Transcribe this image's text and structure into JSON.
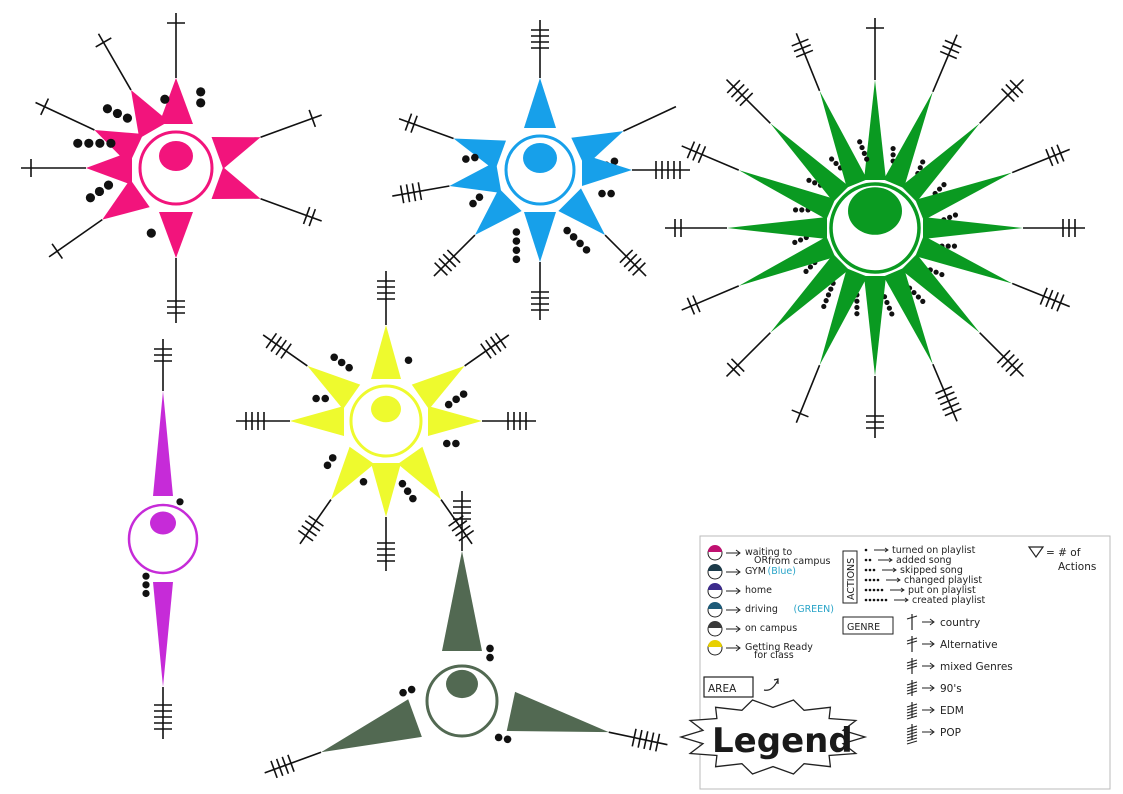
{
  "glyphs": [
    {
      "id": "pink",
      "color": "#f2147c",
      "location": "waiting to OR from campus",
      "spikes": 8,
      "genre_marks": [
        1,
        1,
        1,
        1,
        2,
        1,
        3,
        1
      ],
      "action_dots": [
        2,
        3,
        0,
        4,
        0,
        3,
        1,
        1
      ]
    },
    {
      "id": "blue",
      "color": "#17a0ea",
      "location": "gym",
      "spikes": 8,
      "genre_marks": [
        4,
        0,
        2,
        4,
        5,
        4,
        4,
        4
      ],
      "action_dots": [
        0,
        2,
        0,
        2,
        2,
        2,
        4,
        4
      ]
    },
    {
      "id": "green",
      "color": "#0a9a21",
      "location": "driving",
      "spikes": 16,
      "genre_marks": [
        1,
        3,
        3,
        3,
        3,
        4,
        4,
        5,
        3,
        1,
        2,
        2,
        2,
        3,
        4,
        3
      ],
      "action_dots": [
        3,
        3,
        3,
        3,
        3,
        3,
        4,
        4,
        4,
        5,
        3,
        3,
        3,
        3,
        3,
        4
      ]
    },
    {
      "id": "purple",
      "color": "#c62bd8",
      "location": "home",
      "spikes": 2,
      "genre_marks": [
        3,
        5
      ],
      "action_dots": [
        1,
        3
      ]
    },
    {
      "id": "yellow",
      "color": "#eefa2e",
      "location": "getting ready for class",
      "spikes": 8,
      "genre_marks": [
        4,
        4,
        4,
        4,
        4,
        4,
        4,
        4
      ],
      "action_dots": [
        1,
        3,
        2,
        3,
        2,
        3,
        2,
        1
      ]
    },
    {
      "id": "darkgreen",
      "color": "#526952",
      "location": "on campus",
      "spikes": 3,
      "genre_marks": [
        4,
        5,
        4
      ],
      "action_dots": [
        2,
        2,
        2
      ]
    }
  ],
  "legend": {
    "title": "Legend",
    "locations": [
      {
        "color": "#c01070",
        "label": "waiting to",
        "label2": "OR",
        "label3": "from campus"
      },
      {
        "color": "#1c3b4a",
        "label": "GYM",
        "note": "(Blue)"
      },
      {
        "color": "#3c2b8c",
        "label": "home"
      },
      {
        "color": "#1c5a78",
        "label": "driving",
        "note": "(GREEN)"
      },
      {
        "color": "#3a3a3a",
        "label": "on campus"
      },
      {
        "color": "#e8d000",
        "label": "Getting Ready",
        "label2": "for class"
      }
    ],
    "area_label": "AREA",
    "actions_label": "ACTIONS",
    "actions": [
      {
        "dots": 1,
        "label": "turned on playlist"
      },
      {
        "dots": 2,
        "label": "added song"
      },
      {
        "dots": 3,
        "label": "skipped song"
      },
      {
        "dots": 4,
        "label": "changed playlist"
      },
      {
        "dots": 5,
        "label": "put on playlist"
      },
      {
        "dots": 6,
        "label": "created playlist"
      }
    ],
    "triangle_key": "= # of",
    "triangle_key2": "Actions",
    "genre_label": "GENRE",
    "genres": [
      {
        "marks": 1,
        "label": "country"
      },
      {
        "marks": 2,
        "label": "Alternative"
      },
      {
        "marks": 3,
        "label": "mixed Genres"
      },
      {
        "marks": 4,
        "label": "90's"
      },
      {
        "marks": 5,
        "label": "EDM"
      },
      {
        "marks": 6,
        "label": "POP"
      }
    ]
  }
}
